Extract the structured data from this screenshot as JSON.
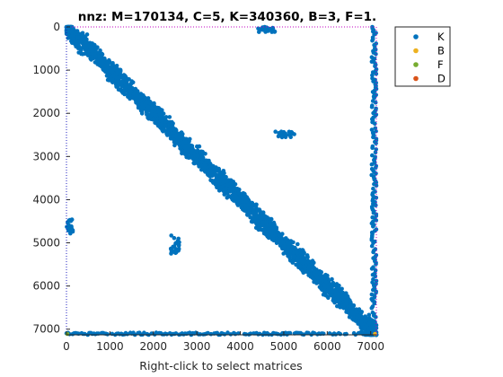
{
  "chart_data": {
    "type": "scatter",
    "title": "nnz: M=170134, C=5, K=340360, B=3, F=1.",
    "xlabel": "Right-click to select matrices",
    "ylabel": "",
    "xlim": [
      0,
      7130
    ],
    "ylim": [
      0,
      7130
    ],
    "y_reversed": true,
    "xticks": [
      0,
      1000,
      2000,
      3000,
      4000,
      5000,
      6000,
      7000
    ],
    "yticks": [
      0,
      1000,
      2000,
      3000,
      4000,
      5000,
      6000,
      7000
    ],
    "legend_position": "top-right-outside",
    "series": [
      {
        "name": "K",
        "color": "#0072BD",
        "marker": "dot",
        "description_blocks": [
          {
            "x": [
              0,
              7130
            ],
            "y": [
              0,
              7130
            ],
            "kind": "diagonal-band",
            "halfwidth": 130
          },
          {
            "x": [
              4400,
              4800
            ],
            "y": [
              0,
              120
            ],
            "kind": "block"
          },
          {
            "x": [
              4800,
              5250
            ],
            "y": [
              2420,
              2560
            ],
            "kind": "block"
          },
          {
            "x": [
              2400,
              2600
            ],
            "y": [
              4820,
              5250
            ],
            "kind": "block"
          },
          {
            "x": [
              0,
              150
            ],
            "y": [
              4450,
              4800
            ],
            "kind": "block"
          },
          {
            "x": [
              0,
              7000
            ],
            "y": [
              7080,
              7130
            ],
            "kind": "row-strip"
          },
          {
            "x": [
              7020,
              7130
            ],
            "y": [
              0,
              7000
            ],
            "kind": "col-strip"
          }
        ]
      },
      {
        "name": "B",
        "color": "#EDB120",
        "marker": "dot",
        "points": [
          [
            7100,
            7110
          ]
        ]
      },
      {
        "name": "F",
        "color": "#77AC30",
        "marker": "dot",
        "points": [
          [
            20,
            7110
          ]
        ]
      },
      {
        "name": "D",
        "color": "#D95319",
        "marker": "dot",
        "points": []
      }
    ]
  }
}
